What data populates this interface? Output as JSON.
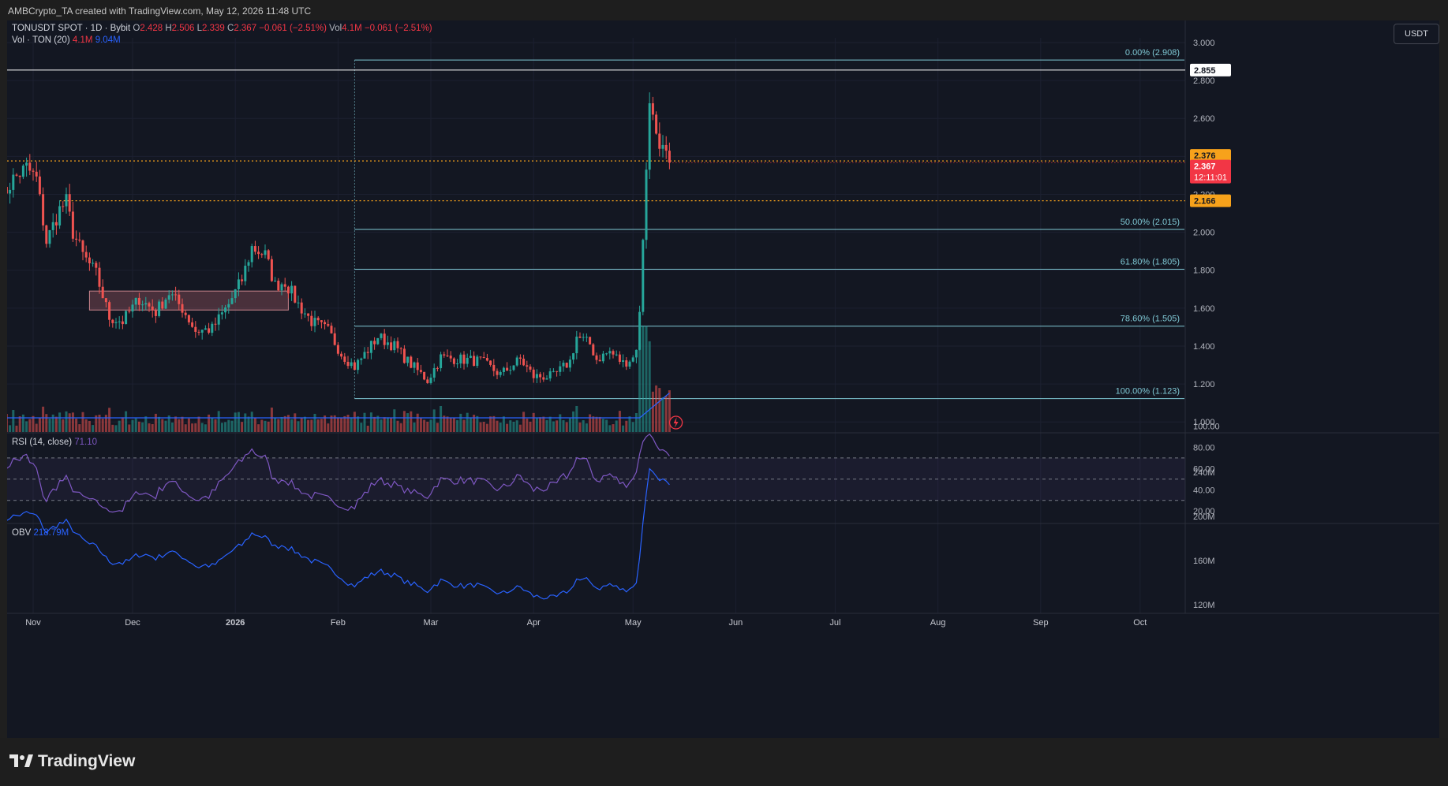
{
  "header": {
    "attribution": "AMBCrypto_TA created with TradingView.com, May 12, 2026 11:48 UTC"
  },
  "legend": {
    "symbol": "TONUSDT SPOT · 1D · Bybit",
    "o_label": "O",
    "o_value": "2.428",
    "h_label": "H",
    "h_value": "2.506",
    "l_label": "L",
    "l_value": "2.339",
    "c_label": "C",
    "c_value": "2.367",
    "change": "−0.061 (−2.51%)",
    "vol_label": "Vol",
    "vol_value": "4.1M",
    "vol_change": "−0.061 (−2.51%)",
    "vol_row_label": "Vol · TON (20)",
    "vol_row_value": "4.1M",
    "vol_ma_value": "9.04M",
    "rsi_label": "RSI (14, close)",
    "rsi_value": "71.10",
    "obv_label": "OBV",
    "obv_value": "218.79M"
  },
  "currency_button": "USDT",
  "badges": {
    "level_high": "2.855",
    "level_orange_1": "2.376",
    "price_current": "2.367",
    "countdown": "12:11:01",
    "level_orange_2": "2.166"
  },
  "colors": {
    "up": "#26a69a",
    "down": "#ef5350",
    "bg": "#131722",
    "fib": "#7fc8d4",
    "orange": "#f7a21b",
    "rsi": "#7e57c2",
    "obv": "#2962ff",
    "white_line": "#ffffff"
  },
  "footer": {
    "brand": "TradingView"
  },
  "chart_data": {
    "type": "candlestick",
    "symbol": "TONUSDT",
    "timeframe": "1D",
    "exchange": "Bybit",
    "price_axis": {
      "ticks": [
        "3.000",
        "2.800",
        "2.600",
        "2.200",
        "2.000",
        "1.800",
        "1.600",
        "1.400",
        "1.200",
        "1.000"
      ],
      "range": [
        0.97,
        3.02
      ]
    },
    "time_axis": {
      "labels": [
        "Nov",
        "Dec",
        "2026",
        "Feb",
        "Mar",
        "Apr",
        "May",
        "Jun",
        "Jul",
        "Aug",
        "Sep",
        "Oct"
      ]
    },
    "horizontal_levels": [
      {
        "value": 2.855,
        "style": "solid",
        "color": "white"
      },
      {
        "value": 2.376,
        "style": "dotted",
        "color": "orange"
      },
      {
        "value": 2.166,
        "style": "dotted",
        "color": "orange"
      }
    ],
    "fibonacci": [
      {
        "label": "0.00% (2.908)",
        "value": 2.908
      },
      {
        "label": "50.00% (2.015)",
        "value": 2.015
      },
      {
        "label": "61.80% (1.805)",
        "value": 1.805
      },
      {
        "label": "78.60% (1.505)",
        "value": 1.505
      },
      {
        "label": "100.00% (1.123)",
        "value": 1.123
      }
    ],
    "zone": {
      "from_date": "2025-11-18",
      "to_date": "2026-01-17",
      "low": 1.59,
      "high": 1.69
    },
    "candle_anchors": [
      [
        "2025-10-22",
        2.17
      ],
      [
        "2025-10-26",
        2.28
      ],
      [
        "2025-10-30",
        2.34
      ],
      [
        "2025-11-02",
        2.28
      ],
      [
        "2025-11-05",
        1.95
      ],
      [
        "2025-11-09",
        2.12
      ],
      [
        "2025-11-11",
        2.16
      ],
      [
        "2025-11-13",
        2.0
      ],
      [
        "2025-11-16",
        1.88
      ],
      [
        "2025-11-20",
        1.78
      ],
      [
        "2025-11-24",
        1.55
      ],
      [
        "2025-11-28",
        1.53
      ],
      [
        "2025-12-03",
        1.65
      ],
      [
        "2025-12-08",
        1.58
      ],
      [
        "2025-12-12",
        1.68
      ],
      [
        "2025-12-16",
        1.6
      ],
      [
        "2025-12-20",
        1.48
      ],
      [
        "2025-12-25",
        1.49
      ],
      [
        "2025-12-30",
        1.62
      ],
      [
        "2026-01-03",
        1.75
      ],
      [
        "2026-01-06",
        1.92
      ],
      [
        "2026-01-10",
        1.88
      ],
      [
        "2026-01-13",
        1.72
      ],
      [
        "2026-01-16",
        1.74
      ],
      [
        "2026-01-20",
        1.62
      ],
      [
        "2026-01-24",
        1.53
      ],
      [
        "2026-01-29",
        1.48
      ],
      [
        "2026-02-02",
        1.36
      ],
      [
        "2026-02-06",
        1.29
      ],
      [
        "2026-02-10",
        1.38
      ],
      [
        "2026-02-13",
        1.45
      ],
      [
        "2026-02-18",
        1.4
      ],
      [
        "2026-02-22",
        1.32
      ],
      [
        "2026-02-28",
        1.22
      ],
      [
        "2026-03-04",
        1.34
      ],
      [
        "2026-03-10",
        1.33
      ],
      [
        "2026-03-16",
        1.32
      ],
      [
        "2026-03-22",
        1.25
      ],
      [
        "2026-03-28",
        1.33
      ],
      [
        "2026-04-01",
        1.24
      ],
      [
        "2026-04-07",
        1.24
      ],
      [
        "2026-04-12",
        1.32
      ],
      [
        "2026-04-14",
        1.45
      ],
      [
        "2026-04-18",
        1.41
      ],
      [
        "2026-04-20",
        1.33
      ],
      [
        "2026-04-24",
        1.37
      ],
      [
        "2026-04-28",
        1.31
      ],
      [
        "2026-05-01",
        1.34
      ],
      [
        "2026-05-02",
        1.38
      ],
      [
        "2026-05-03",
        1.58
      ],
      [
        "2026-05-04",
        1.96
      ],
      [
        "2026-05-05",
        2.33
      ],
      [
        "2026-05-06",
        2.68
      ],
      [
        "2026-05-07",
        2.62
      ],
      [
        "2026-05-08",
        2.52
      ],
      [
        "2026-05-09",
        2.44
      ],
      [
        "2026-05-10",
        2.46
      ],
      [
        "2026-05-11",
        2.43
      ],
      [
        "2026-05-12",
        2.367
      ]
    ],
    "rsi": {
      "axis_ticks": [
        "100.00",
        "80.00",
        "60.00",
        "40.00",
        "20.00"
      ],
      "bands": [
        30,
        50,
        70
      ],
      "last": 71.1,
      "peak": 90
    },
    "obv": {
      "axis_ticks": [
        "240M",
        "200M",
        "160M",
        "120M"
      ],
      "last": 218.79,
      "peak": 243
    },
    "volume": {
      "ma_period": 20,
      "last": "4.1M",
      "ma_last": "9.04M"
    }
  }
}
